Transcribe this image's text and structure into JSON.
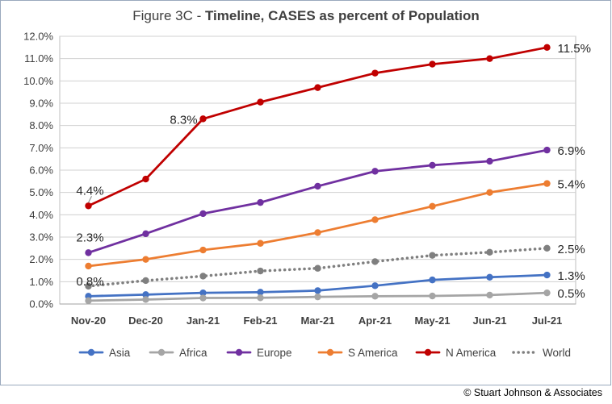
{
  "chart_data": {
    "type": "line",
    "title_prefix": "Figure 3C - ",
    "title_main": "Timeline, CASES as percent of Population",
    "categories": [
      "Nov-20",
      "Dec-20",
      "Jan-21",
      "Feb-21",
      "Mar-21",
      "Apr-21",
      "May-21",
      "Jun-21",
      "Jul-21"
    ],
    "ylim": [
      0,
      12
    ],
    "y_ticks": [
      "0.0%",
      "1.0%",
      "2.0%",
      "3.0%",
      "4.0%",
      "5.0%",
      "6.0%",
      "7.0%",
      "8.0%",
      "9.0%",
      "10.0%",
      "11.0%",
      "12.0%"
    ],
    "grid": "horizontal",
    "legend_position": "bottom",
    "series": [
      {
        "name": "Asia",
        "color": "#4472c4",
        "dash": false,
        "values": [
          0.35,
          0.42,
          0.5,
          0.53,
          0.6,
          0.82,
          1.08,
          1.2,
          1.3
        ],
        "labels": [
          {
            "index": 8,
            "text": "1.3%"
          }
        ]
      },
      {
        "name": "Africa",
        "color": "#a5a5a5",
        "dash": false,
        "values": [
          0.15,
          0.2,
          0.27,
          0.28,
          0.32,
          0.35,
          0.36,
          0.4,
          0.5
        ],
        "labels": [
          {
            "index": 8,
            "text": "0.5%"
          }
        ]
      },
      {
        "name": "Europe",
        "color": "#7030a0",
        "dash": false,
        "values": [
          2.3,
          3.15,
          4.05,
          4.55,
          5.28,
          5.95,
          6.22,
          6.4,
          6.9
        ],
        "labels": [
          {
            "index": 0,
            "text": "2.3%"
          },
          {
            "index": 8,
            "text": "6.9%"
          }
        ]
      },
      {
        "name": "S America",
        "color": "#ed7d31",
        "dash": false,
        "values": [
          1.7,
          2.0,
          2.42,
          2.72,
          3.2,
          3.78,
          4.38,
          5.0,
          5.4
        ],
        "labels": [
          {
            "index": 8,
            "text": "5.4%"
          }
        ]
      },
      {
        "name": "N America",
        "color": "#c00000",
        "dash": false,
        "values": [
          4.4,
          5.6,
          8.3,
          9.05,
          9.7,
          10.35,
          10.75,
          11.0,
          11.5
        ],
        "labels": [
          {
            "index": 0,
            "text": "4.4%"
          },
          {
            "index": 2,
            "text": "8.3%"
          },
          {
            "index": 8,
            "text": "11.5%"
          }
        ]
      },
      {
        "name": "World",
        "color": "#7f7f7f",
        "dash": true,
        "values": [
          0.8,
          1.05,
          1.25,
          1.48,
          1.6,
          1.9,
          2.18,
          2.32,
          2.5
        ],
        "labels": [
          {
            "index": 0,
            "text": "0.8%"
          },
          {
            "index": 8,
            "text": "2.5%"
          }
        ]
      }
    ]
  },
  "copyright": "© Stuart Johnson & Associates"
}
